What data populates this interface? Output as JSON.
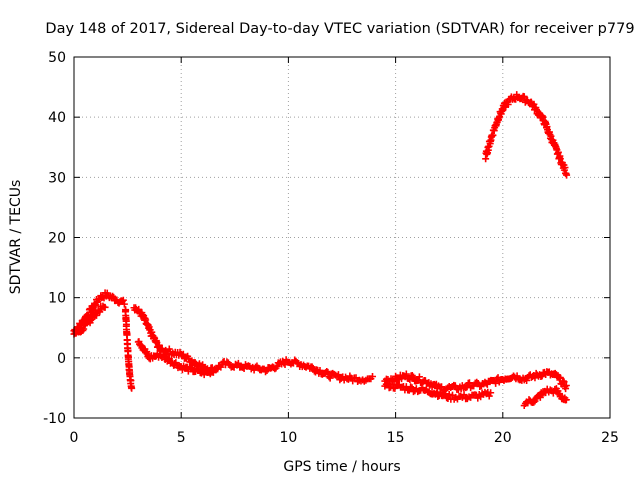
{
  "chart_data": {
    "type": "scatter",
    "title": "Day 148 of 2017, Sidereal Day-to-day VTEC variation (SDTVAR) for receiver p779",
    "xlabel": "GPS time / hours",
    "ylabel": "SDTVAR / TECUs",
    "xlim": [
      0,
      25
    ],
    "ylim": [
      -10,
      50
    ],
    "xticks": [
      0,
      5,
      10,
      15,
      20,
      25
    ],
    "yticks": [
      -10,
      0,
      10,
      20,
      30,
      40,
      50
    ],
    "grid": true,
    "marker": "+",
    "series": [
      {
        "name": "SDTVAR",
        "color": "#ff0000",
        "segments": [
          {
            "x": [
              0.0,
              0.3,
              0.6,
              0.9,
              1.2,
              1.5,
              1.8,
              2.1,
              2.4
            ],
            "y": [
              4.5,
              5.5,
              7.0,
              8.5,
              10.0,
              10.5,
              10.0,
              9.5,
              9.0
            ]
          },
          {
            "x": [
              0.0,
              0.3,
              0.6,
              0.9,
              1.2,
              1.5
            ],
            "y": [
              4.0,
              4.5,
              5.5,
              7.0,
              8.0,
              8.5
            ]
          },
          {
            "x": [
              2.4,
              2.5,
              2.6,
              2.7
            ],
            "y": [
              8.0,
              2.0,
              -3.0,
              -5.0
            ]
          },
          {
            "x": [
              2.8,
              3.2,
              3.6,
              4.0,
              4.5,
              5.0,
              5.5,
              6.0,
              6.5,
              7.0,
              8.0,
              9.0,
              10.0,
              11.0,
              12.0,
              13.0,
              14.0
            ],
            "y": [
              8.5,
              7.0,
              4.0,
              1.5,
              1.0,
              0.5,
              -0.5,
              -1.5,
              -2.0,
              -1.0,
              -1.5,
              -2.0,
              -0.5,
              -1.5,
              -3.0,
              -3.5,
              -3.5
            ]
          },
          {
            "x": [
              3.0,
              3.5,
              4.0,
              4.5,
              5.0,
              5.5,
              6.0,
              6.5
            ],
            "y": [
              3.0,
              0.0,
              0.5,
              -0.5,
              -1.5,
              -2.0,
              -2.5,
              -2.5
            ]
          },
          {
            "x": [
              14.5,
              15.0,
              15.5,
              16.0,
              16.5,
              17.0,
              17.5,
              18.0,
              18.5,
              19.0,
              19.5,
              20.0,
              20.5,
              21.0,
              21.5,
              22.0,
              22.5,
              23.0
            ],
            "y": [
              -3.5,
              -3.5,
              -3.0,
              -3.5,
              -4.0,
              -5.0,
              -5.0,
              -5.0,
              -4.5,
              -4.5,
              -4.0,
              -3.5,
              -3.0,
              -3.5,
              -3.0,
              -2.5,
              -3.0,
              -5.0
            ]
          },
          {
            "x": [
              14.5,
              15.5,
              16.5,
              17.5,
              18.5,
              19.5
            ],
            "y": [
              -4.5,
              -5.0,
              -5.5,
              -6.5,
              -6.5,
              -6.0
            ]
          },
          {
            "x": [
              21.0,
              21.5,
              22.0,
              22.5,
              23.0
            ],
            "y": [
              -7.5,
              -7.0,
              -5.5,
              -5.5,
              -7.5
            ]
          },
          {
            "x": [
              19.2,
              19.5,
              19.8,
              20.1,
              20.4,
              20.7,
              21.0,
              21.3,
              21.6,
              21.9,
              22.2,
              22.5,
              22.8,
              23.0
            ],
            "y": [
              33.5,
              37.0,
              40.0,
              42.0,
              43.0,
              43.5,
              43.0,
              42.5,
              41.0,
              39.5,
              37.0,
              34.5,
              32.0,
              30.5
            ]
          }
        ]
      }
    ]
  }
}
